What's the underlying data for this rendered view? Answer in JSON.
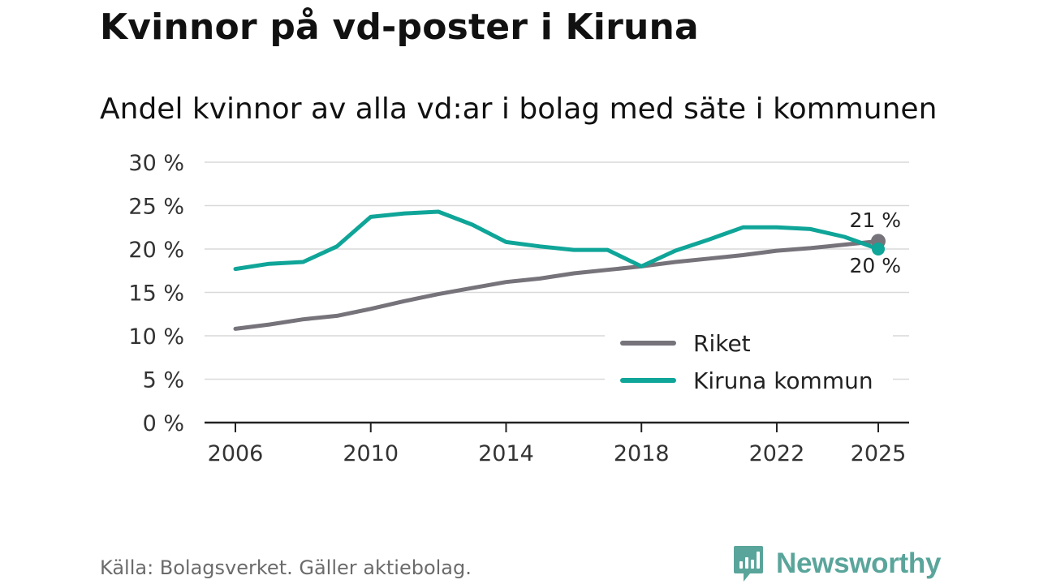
{
  "title": "Kvinnor på vd-poster i Kiruna",
  "subtitle": "Andel kvinnor av alla vd:ar i bolag med säte i kommunen",
  "source": "Källa: Bolagsverket. Gäller aktiebolag.",
  "brand": {
    "name": "Newsworthy",
    "color": "#5aa59b"
  },
  "chart_data": {
    "type": "line",
    "x": [
      2006,
      2007,
      2008,
      2009,
      2010,
      2011,
      2012,
      2013,
      2014,
      2015,
      2016,
      2017,
      2018,
      2019,
      2020,
      2021,
      2022,
      2023,
      2024,
      2025
    ],
    "series": [
      {
        "name": "Riket",
        "color": "#76737a",
        "values": [
          10.8,
          11.3,
          11.9,
          12.3,
          13.1,
          14.0,
          14.8,
          15.5,
          16.2,
          16.6,
          17.2,
          17.6,
          18.0,
          18.5,
          18.9,
          19.3,
          19.8,
          20.1,
          20.5,
          20.9
        ],
        "end_label": "21 %"
      },
      {
        "name": "Kiruna kommun",
        "color": "#0fa598",
        "values": [
          17.7,
          18.3,
          18.5,
          20.3,
          23.7,
          24.1,
          24.3,
          22.8,
          20.8,
          20.3,
          19.9,
          19.9,
          18.0,
          19.8,
          21.1,
          22.5,
          22.5,
          22.3,
          21.4,
          20.0
        ],
        "end_label": "20 %"
      }
    ],
    "y_ticks": [
      0,
      5,
      10,
      15,
      20,
      25,
      30
    ],
    "y_tick_labels": [
      "0 %",
      "5 %",
      "10 %",
      "15 %",
      "20 %",
      "25 %",
      "30 %"
    ],
    "x_ticks": [
      2006,
      2010,
      2014,
      2018,
      2022,
      2025
    ],
    "x_tick_labels": [
      "2006",
      "2010",
      "2014",
      "2018",
      "2022",
      "2025"
    ],
    "ylim": [
      0,
      30
    ],
    "xlim": [
      2006,
      2025
    ],
    "xlabel": "",
    "ylabel": "",
    "grid": true,
    "legend_position": "bottom-right"
  }
}
